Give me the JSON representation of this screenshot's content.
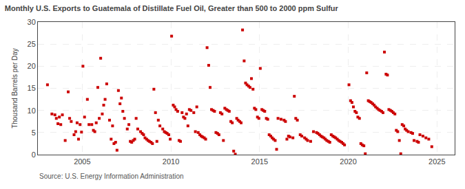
{
  "chart_data": {
    "type": "scatter",
    "title": "Monthly U.S. Exports to Guatemala of Distillate Fuel Oil, Greater than 500 to 2000 ppm Sulfur",
    "ylabel": "Thousand Barrels per Day",
    "annotations": [
      "Source: U.S. Energy Information Administration"
    ],
    "color": "#cc0000",
    "marker": "square",
    "grid": true,
    "xlim": [
      2002.5,
      2026.0
    ],
    "xticks": [
      2005,
      2010,
      2015,
      2020,
      2025
    ],
    "ylim": [
      0,
      30
    ],
    "yticks": [
      0,
      5,
      10,
      15,
      20,
      25,
      30
    ],
    "x": [
      2003.04,
      2003.29,
      2003.46,
      2003.54,
      2003.63,
      2003.71,
      2003.79,
      2003.88,
      2004.04,
      2004.21,
      2004.29,
      2004.38,
      2004.54,
      2004.63,
      2004.71,
      2004.79,
      2004.88,
      2004.96,
      2005.04,
      2005.13,
      2005.29,
      2005.38,
      2005.54,
      2005.63,
      2005.71,
      2005.79,
      2005.88,
      2005.96,
      2006.04,
      2006.13,
      2006.21,
      2006.29,
      2006.38,
      2006.54,
      2006.63,
      2006.71,
      2006.79,
      2006.88,
      2006.96,
      2007.04,
      2007.13,
      2007.21,
      2007.29,
      2007.38,
      2007.54,
      2007.63,
      2007.71,
      2007.79,
      2007.88,
      2007.96,
      2008.04,
      2008.13,
      2008.29,
      2008.38,
      2008.46,
      2008.54,
      2008.63,
      2008.71,
      2008.79,
      2008.88,
      2008.96,
      2009.04,
      2009.13,
      2009.21,
      2009.29,
      2009.38,
      2009.54,
      2009.63,
      2009.71,
      2009.79,
      2009.88,
      2009.96,
      2010.04,
      2010.13,
      2010.21,
      2010.29,
      2010.38,
      2010.46,
      2010.54,
      2010.63,
      2010.71,
      2010.79,
      2010.88,
      2010.96,
      2011.04,
      2011.13,
      2011.29,
      2011.38,
      2011.46,
      2011.54,
      2011.63,
      2011.71,
      2011.79,
      2011.88,
      2011.96,
      2012.04,
      2012.13,
      2012.21,
      2012.29,
      2012.38,
      2012.46,
      2012.54,
      2012.63,
      2012.71,
      2012.79,
      2012.88,
      2012.96,
      2013.04,
      2013.13,
      2013.21,
      2013.29,
      2013.38,
      2013.46,
      2013.54,
      2013.63,
      2013.71,
      2013.79,
      2013.88,
      2013.96,
      2014.04,
      2014.13,
      2014.21,
      2014.29,
      2014.38,
      2014.46,
      2014.54,
      2014.63,
      2014.71,
      2014.79,
      2014.88,
      2014.96,
      2015.04,
      2015.13,
      2015.21,
      2015.29,
      2015.38,
      2015.46,
      2015.54,
      2015.63,
      2015.71,
      2015.79,
      2015.88,
      2015.96,
      2016.04,
      2016.21,
      2016.38,
      2016.46,
      2016.54,
      2016.63,
      2016.71,
      2016.88,
      2016.96,
      2017.04,
      2017.13,
      2017.29,
      2017.38,
      2017.54,
      2017.63,
      2017.71,
      2017.88,
      2018.04,
      2018.21,
      2018.29,
      2018.38,
      2018.46,
      2018.54,
      2018.63,
      2018.71,
      2018.79,
      2018.88,
      2018.96,
      2019.04,
      2019.13,
      2019.21,
      2019.29,
      2019.38,
      2019.46,
      2019.54,
      2019.63,
      2019.71,
      2019.79,
      2020.04,
      2020.13,
      2020.21,
      2020.29,
      2020.38,
      2020.46,
      2020.54,
      2020.63,
      2020.71,
      2020.79,
      2020.88,
      2020.96,
      2021.04,
      2021.13,
      2021.21,
      2021.29,
      2021.38,
      2021.46,
      2021.54,
      2021.63,
      2021.71,
      2021.79,
      2021.88,
      2021.96,
      2022.04,
      2022.13,
      2022.21,
      2022.29,
      2022.38,
      2022.46,
      2022.54,
      2022.63,
      2022.71,
      2022.79,
      2022.88,
      2022.96,
      2023.04,
      2023.13,
      2023.21,
      2023.29,
      2023.38,
      2023.54,
      2023.63,
      2023.71,
      2023.88,
      2023.96,
      2024.04,
      2024.21,
      2024.38,
      2024.54,
      2024.71
    ],
    "values": [
      15.8,
      9.2,
      9.0,
      8.2,
      7.0,
      8.5,
      6.8,
      9.0,
      3.2,
      14.2,
      8.2,
      7.5,
      4.5,
      5.2,
      7.2,
      3.5,
      6.8,
      5.1,
      20.0,
      8.5,
      12.5,
      6.8,
      6.8,
      5.5,
      5.2,
      7.2,
      15.2,
      8.2,
      21.8,
      9.2,
      11.2,
      12.5,
      16.0,
      7.8,
      3.5,
      6.5,
      2.5,
      2.8,
      1.0,
      14.5,
      11.5,
      12.8,
      9.8,
      8.2,
      5.8,
      6.8,
      3.0,
      2.8,
      3.2,
      3.5,
      8.2,
      5.8,
      5.2,
      4.8,
      4.5,
      3.8,
      3.5,
      3.2,
      3.0,
      2.8,
      2.5,
      14.8,
      9.5,
      3.0,
      7.8,
      6.5,
      5.8,
      5.2,
      5.0,
      4.8,
      4.5,
      3.5,
      26.8,
      11.2,
      10.8,
      10.2,
      9.8,
      3.2,
      3.0,
      9.5,
      8.5,
      8.2,
      9.2,
      6.5,
      10.2,
      10.0,
      9.5,
      5.2,
      10.8,
      5.0,
      4.5,
      4.2,
      4.0,
      3.8,
      3.5,
      24.2,
      20.2,
      15.2,
      10.2,
      10.0,
      9.8,
      5.0,
      4.8,
      4.5,
      9.5,
      9.2,
      3.2,
      10.5,
      10.2,
      10.0,
      9.8,
      7.5,
      7.2,
      0.8,
      0.1,
      8.2,
      7.8,
      7.5,
      7.2,
      28.2,
      21.2,
      16.2,
      15.8,
      15.5,
      15.2,
      17.2,
      14.8,
      10.5,
      10.2,
      8.5,
      8.2,
      19.5,
      10.2,
      10.0,
      9.8,
      8.2,
      8.0,
      4.5,
      4.2,
      3.8,
      3.5,
      3.2,
      1.2,
      8.2,
      8.0,
      7.8,
      7.5,
      3.5,
      4.2,
      4.0,
      3.8,
      13.2,
      8.2,
      7.8,
      4.5,
      4.2,
      3.8,
      3.5,
      3.2,
      3.0,
      5.2,
      5.0,
      4.8,
      4.5,
      4.2,
      4.0,
      3.8,
      3.5,
      3.2,
      3.0,
      2.8,
      4.5,
      4.2,
      4.0,
      3.8,
      3.5,
      3.2,
      3.0,
      2.8,
      2.5,
      2.2,
      15.8,
      12.2,
      11.8,
      10.8,
      9.8,
      9.5,
      8.5,
      8.2,
      2.5,
      2.2,
      2.0,
      0.2,
      18.5,
      12.2,
      12.0,
      11.8,
      11.5,
      11.2,
      10.8,
      10.5,
      10.2,
      10.0,
      9.8,
      9.5,
      23.2,
      18.2,
      18.0,
      10.2,
      10.0,
      9.8,
      9.5,
      9.2,
      5.5,
      5.2,
      3.2,
      0.2,
      6.8,
      6.5,
      5.8,
      5.5,
      5.2,
      5.0,
      4.8,
      3.2,
      3.0,
      2.8,
      4.5,
      4.2,
      3.8,
      3.5,
      1.8
    ]
  }
}
